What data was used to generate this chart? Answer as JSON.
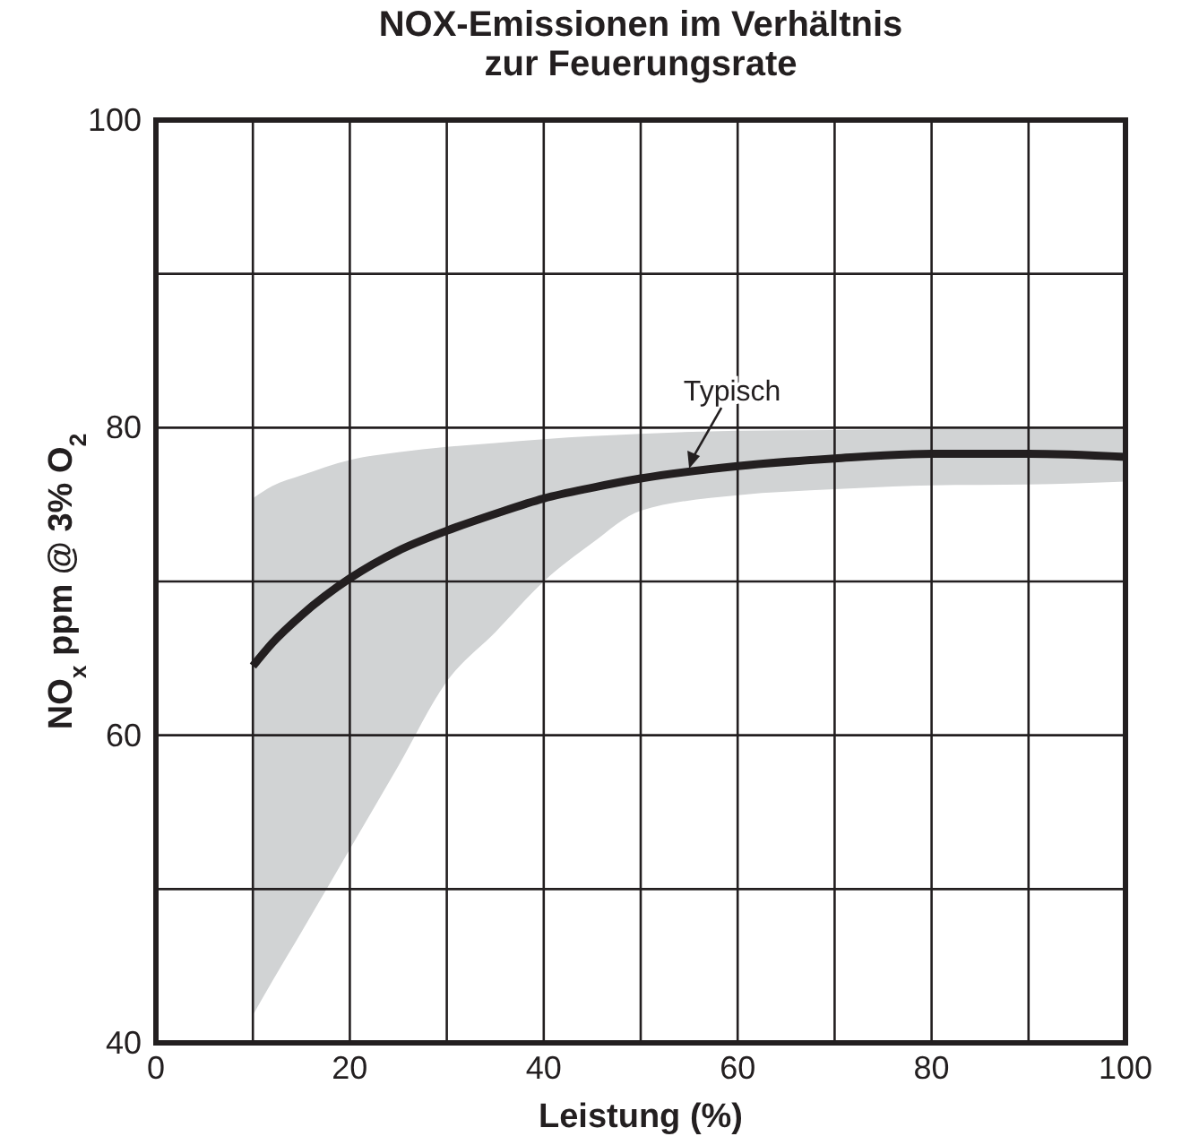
{
  "chart_data": {
    "type": "line",
    "title": "NOX-Emissionen im Verhältnis\nzur Feuerungsrate",
    "xlabel": "Leistung (%)",
    "ylabel": "NO$_{x}$ ppm @ 3% O$_{2}$",
    "xlim": [
      0,
      100
    ],
    "ylim": [
      40,
      100
    ],
    "xticks": [
      0,
      {
        "value": 10,
        "label": null
      },
      20,
      {
        "value": 30,
        "label": null
      },
      40,
      {
        "value": 50,
        "label": null
      },
      60,
      {
        "value": 70,
        "label": null
      },
      80,
      {
        "value": 90,
        "label": null
      },
      100
    ],
    "yticks": [
      40,
      {
        "value": 50,
        "label": null
      },
      60,
      {
        "value": 70,
        "label": null
      },
      80,
      {
        "value": 90,
        "label": null
      },
      100
    ],
    "grid": true,
    "line_style": "solid",
    "annotations": [
      {
        "text": "Typisch",
        "x": 55,
        "y": 77.1
      }
    ],
    "series": [
      {
        "color": "#231f20",
        "x": [
          10,
          12,
          15,
          20,
          25,
          30,
          35,
          40,
          45,
          50,
          60,
          70,
          80,
          90,
          100
        ],
        "values": [
          64.5,
          66,
          67.8,
          70.2,
          72,
          73.3,
          74.4,
          75.4,
          76.1,
          76.7,
          77.5,
          78,
          78.3,
          78.3,
          78.1
        ],
        "lower": [
          41.8,
          44,
          47.2,
          52.6,
          58,
          63.5,
          66.7,
          70,
          72.5,
          74.6,
          75.6,
          76,
          76.25,
          76.3,
          76.5
        ],
        "upper": [
          75.4,
          76.2,
          76.9,
          77.9,
          78.4,
          78.75,
          79,
          79.25,
          79.45,
          79.6,
          79.8,
          79.85,
          79.9,
          79.95,
          80
        ]
      }
    ]
  }
}
